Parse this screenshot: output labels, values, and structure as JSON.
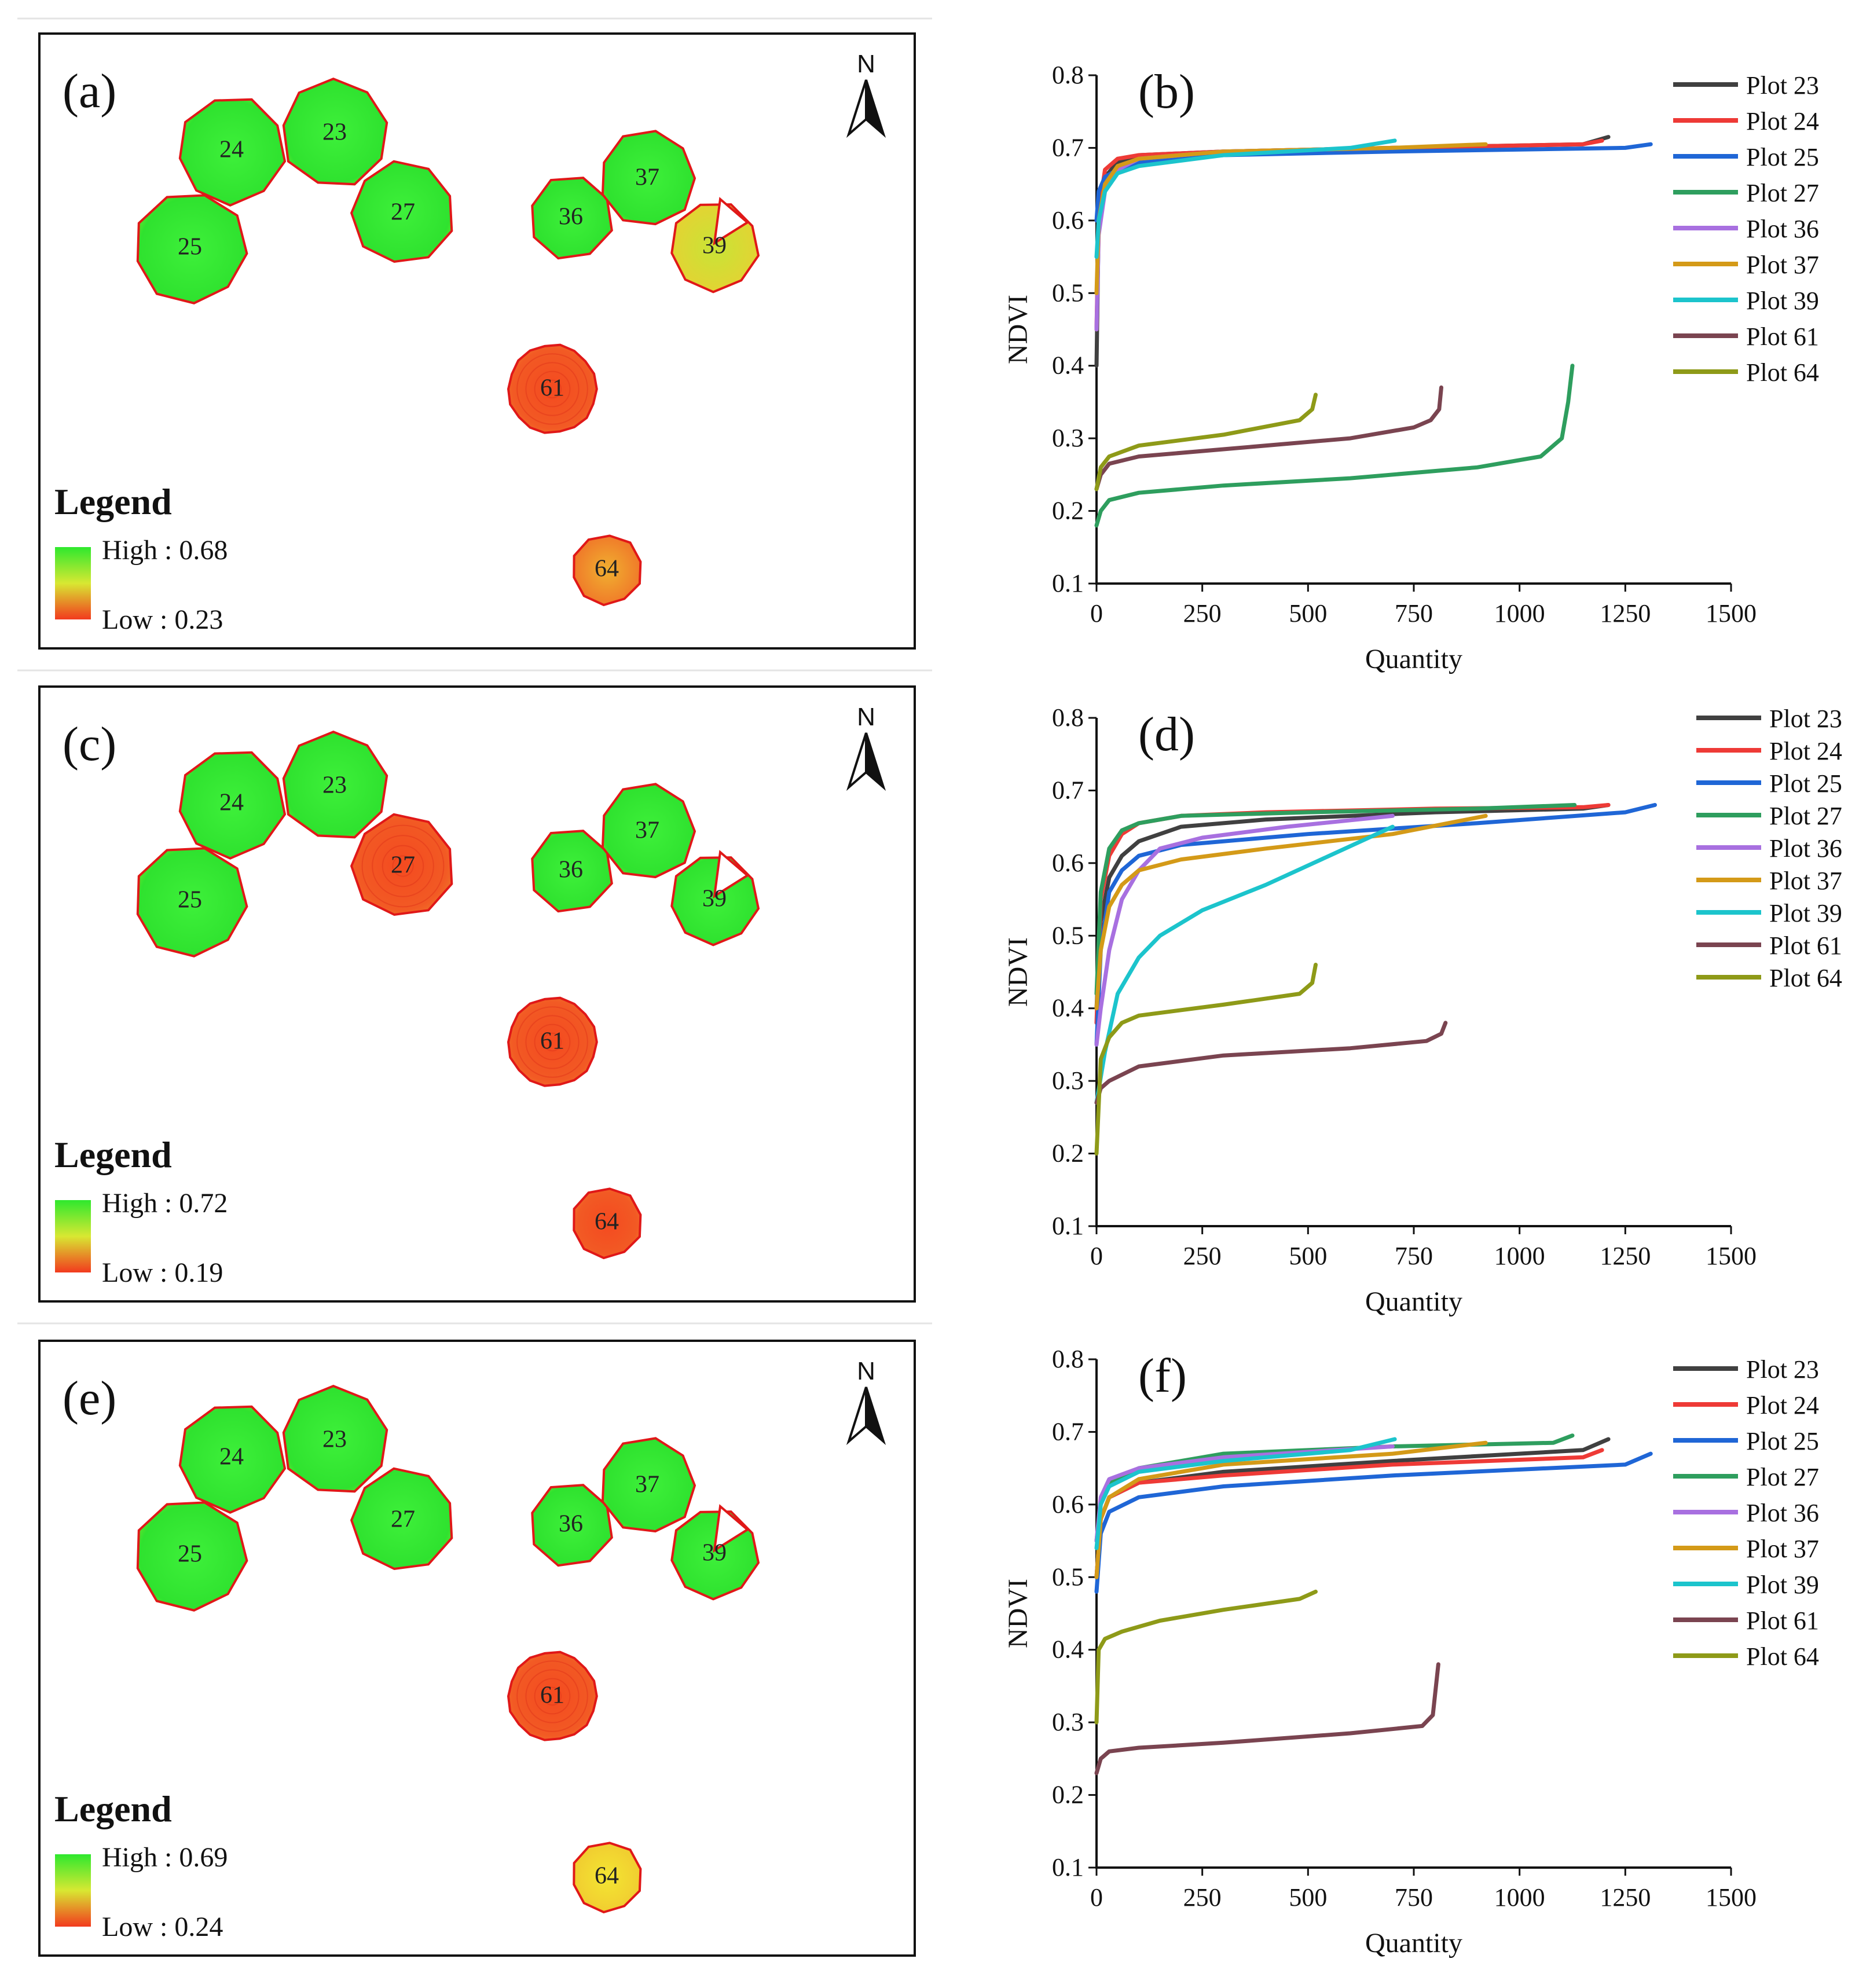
{
  "colors": {
    "high": "#2ee82e",
    "mid": "#d8e832",
    "low": "#f23a1e",
    "outline": "#e01818",
    "Plot 23": "#404040",
    "Plot 24": "#ee3a36",
    "Plot 25": "#1f66d6",
    "Plot 27": "#2e9e5e",
    "Plot 36": "#a870e0",
    "Plot 37": "#d49a18",
    "Plot 39": "#1cc4cc",
    "Plot 61": "#7a4450",
    "Plot 64": "#8e9a18"
  },
  "maps": [
    {
      "label": "(a)",
      "north_label": "N",
      "legend_title": "Legend",
      "legend_high": "High : 0.68",
      "legend_low": "Low : 0.23",
      "plots": [
        {
          "id": "24",
          "ndvi_level": "high"
        },
        {
          "id": "23",
          "ndvi_level": "high"
        },
        {
          "id": "25",
          "ndvi_level": "high"
        },
        {
          "id": "27",
          "ndvi_level": "high"
        },
        {
          "id": "36",
          "ndvi_level": "high"
        },
        {
          "id": "37",
          "ndvi_level": "high"
        },
        {
          "id": "39",
          "ndvi_level": "mixed"
        },
        {
          "id": "61",
          "ndvi_level": "low"
        },
        {
          "id": "64",
          "ndvi_level": "low-mid"
        }
      ]
    },
    {
      "label": "(c)",
      "north_label": "N",
      "legend_title": "Legend",
      "legend_high": "High : 0.72",
      "legend_low": "Low : 0.19",
      "plots": [
        {
          "id": "24",
          "ndvi_level": "high"
        },
        {
          "id": "23",
          "ndvi_level": "high"
        },
        {
          "id": "25",
          "ndvi_level": "high"
        },
        {
          "id": "27",
          "ndvi_level": "low"
        },
        {
          "id": "36",
          "ndvi_level": "high"
        },
        {
          "id": "37",
          "ndvi_level": "high"
        },
        {
          "id": "39",
          "ndvi_level": "high"
        },
        {
          "id": "61",
          "ndvi_level": "low"
        },
        {
          "id": "64",
          "ndvi_level": "low"
        }
      ]
    },
    {
      "label": "(e)",
      "north_label": "N",
      "legend_title": "Legend",
      "legend_high": "High : 0.69",
      "legend_low": "Low : 0.24",
      "plots": [
        {
          "id": "24",
          "ndvi_level": "high"
        },
        {
          "id": "23",
          "ndvi_level": "high"
        },
        {
          "id": "25",
          "ndvi_level": "high"
        },
        {
          "id": "27",
          "ndvi_level": "high"
        },
        {
          "id": "36",
          "ndvi_level": "high"
        },
        {
          "id": "37",
          "ndvi_level": "high"
        },
        {
          "id": "39",
          "ndvi_level": "high"
        },
        {
          "id": "61",
          "ndvi_level": "low"
        },
        {
          "id": "64",
          "ndvi_level": "mid"
        }
      ]
    }
  ],
  "chart_data": [
    {
      "type": "line",
      "label": "(b)",
      "xlabel": "Quantity",
      "ylabel": "NDVI",
      "xlim": [
        0,
        1500
      ],
      "ylim": [
        0.1,
        0.8
      ],
      "xticks": [
        0,
        250,
        500,
        750,
        1000,
        1250,
        1500
      ],
      "yticks": [
        0.1,
        0.2,
        0.3,
        0.4,
        0.5,
        0.6,
        0.7,
        0.8
      ],
      "legend_position": "right",
      "series": [
        {
          "name": "Plot 23",
          "x": [
            0,
            5,
            20,
            50,
            100,
            300,
            700,
            1150,
            1210
          ],
          "y": [
            0.4,
            0.6,
            0.66,
            0.68,
            0.69,
            0.695,
            0.7,
            0.705,
            0.715
          ]
        },
        {
          "name": "Plot 24",
          "x": [
            0,
            5,
            20,
            50,
            100,
            300,
            700,
            1150,
            1195
          ],
          "y": [
            0.45,
            0.61,
            0.67,
            0.685,
            0.69,
            0.695,
            0.7,
            0.705,
            0.71
          ]
        },
        {
          "name": "Plot 25",
          "x": [
            0,
            5,
            20,
            50,
            100,
            300,
            700,
            1250,
            1310
          ],
          "y": [
            0.6,
            0.64,
            0.66,
            0.67,
            0.68,
            0.69,
            0.695,
            0.7,
            0.705
          ]
        },
        {
          "name": "Plot 27",
          "x": [
            0,
            10,
            30,
            100,
            300,
            600,
            900,
            1050,
            1100,
            1115,
            1125
          ],
          "y": [
            0.18,
            0.2,
            0.215,
            0.225,
            0.235,
            0.245,
            0.26,
            0.275,
            0.3,
            0.35,
            0.4
          ]
        },
        {
          "name": "Plot 36",
          "x": [
            0,
            5,
            20,
            50,
            100,
            300,
            700
          ],
          "y": [
            0.45,
            0.58,
            0.64,
            0.67,
            0.685,
            0.695,
            0.7
          ]
        },
        {
          "name": "Plot 37",
          "x": [
            0,
            5,
            20,
            50,
            100,
            300,
            700,
            920
          ],
          "y": [
            0.5,
            0.6,
            0.65,
            0.675,
            0.685,
            0.695,
            0.7,
            0.705
          ]
        },
        {
          "name": "Plot 39",
          "x": [
            0,
            5,
            20,
            50,
            100,
            300,
            600,
            705
          ],
          "y": [
            0.55,
            0.6,
            0.64,
            0.665,
            0.675,
            0.69,
            0.7,
            0.71
          ]
        },
        {
          "name": "Plot 61",
          "x": [
            0,
            10,
            30,
            100,
            300,
            600,
            750,
            790,
            810,
            815
          ],
          "y": [
            0.23,
            0.25,
            0.265,
            0.275,
            0.285,
            0.3,
            0.315,
            0.325,
            0.34,
            0.37
          ]
        },
        {
          "name": "Plot 64",
          "x": [
            0,
            10,
            30,
            100,
            300,
            480,
            510,
            518
          ],
          "y": [
            0.23,
            0.26,
            0.275,
            0.29,
            0.305,
            0.325,
            0.34,
            0.36
          ]
        }
      ]
    },
    {
      "type": "line",
      "label": "(d)",
      "xlabel": "Quantity",
      "ylabel": "NDVI",
      "xlim": [
        0,
        1500
      ],
      "ylim": [
        0.1,
        0.8
      ],
      "xticks": [
        0,
        250,
        500,
        750,
        1000,
        1250,
        1500
      ],
      "yticks": [
        0.1,
        0.2,
        0.3,
        0.4,
        0.5,
        0.6,
        0.7,
        0.8
      ],
      "legend_position": "right",
      "series": [
        {
          "name": "Plot 23",
          "x": [
            0,
            10,
            30,
            60,
            100,
            200,
            400,
            800,
            1150,
            1210
          ],
          "y": [
            0.4,
            0.52,
            0.58,
            0.61,
            0.63,
            0.65,
            0.66,
            0.67,
            0.675,
            0.68
          ]
        },
        {
          "name": "Plot 24",
          "x": [
            0,
            10,
            30,
            60,
            100,
            200,
            400,
            800,
            1150,
            1210
          ],
          "y": [
            0.38,
            0.55,
            0.61,
            0.64,
            0.655,
            0.665,
            0.67,
            0.675,
            0.677,
            0.68
          ]
        },
        {
          "name": "Plot 25",
          "x": [
            0,
            10,
            30,
            60,
            100,
            200,
            500,
            900,
            1250,
            1320
          ],
          "y": [
            0.35,
            0.48,
            0.56,
            0.59,
            0.61,
            0.625,
            0.64,
            0.655,
            0.67,
            0.68
          ]
        },
        {
          "name": "Plot 27",
          "x": [
            0,
            10,
            30,
            60,
            100,
            200,
            500,
            900,
            1130
          ],
          "y": [
            0.42,
            0.56,
            0.62,
            0.645,
            0.655,
            0.665,
            0.67,
            0.675,
            0.68
          ]
        },
        {
          "name": "Plot 36",
          "x": [
            0,
            10,
            30,
            60,
            100,
            150,
            250,
            450,
            700
          ],
          "y": [
            0.35,
            0.4,
            0.48,
            0.55,
            0.59,
            0.62,
            0.635,
            0.65,
            0.665
          ]
        },
        {
          "name": "Plot 37",
          "x": [
            0,
            10,
            30,
            60,
            100,
            200,
            400,
            700,
            920
          ],
          "y": [
            0.4,
            0.48,
            0.54,
            0.57,
            0.59,
            0.605,
            0.62,
            0.64,
            0.665
          ]
        },
        {
          "name": "Plot 39",
          "x": [
            0,
            20,
            50,
            100,
            150,
            250,
            400,
            550,
            700
          ],
          "y": [
            0.27,
            0.34,
            0.42,
            0.47,
            0.5,
            0.535,
            0.57,
            0.61,
            0.65
          ]
        },
        {
          "name": "Plot 61",
          "x": [
            0,
            10,
            30,
            100,
            300,
            600,
            780,
            815,
            825
          ],
          "y": [
            0.27,
            0.29,
            0.3,
            0.32,
            0.335,
            0.345,
            0.355,
            0.365,
            0.38
          ]
        },
        {
          "name": "Plot 64",
          "x": [
            0,
            10,
            30,
            60,
            100,
            300,
            480,
            510,
            518
          ],
          "y": [
            0.2,
            0.33,
            0.36,
            0.38,
            0.39,
            0.405,
            0.42,
            0.435,
            0.46
          ]
        }
      ]
    },
    {
      "type": "line",
      "label": "(f)",
      "xlabel": "Quantity",
      "ylabel": "NDVI",
      "xlim": [
        0,
        1500
      ],
      "ylim": [
        0.1,
        0.8
      ],
      "xticks": [
        0,
        250,
        500,
        750,
        1000,
        1250,
        1500
      ],
      "yticks": [
        0.1,
        0.2,
        0.3,
        0.4,
        0.5,
        0.6,
        0.7,
        0.8
      ],
      "legend_position": "right",
      "series": [
        {
          "name": "Plot 23",
          "x": [
            0,
            10,
            30,
            100,
            300,
            700,
            1150,
            1210
          ],
          "y": [
            0.5,
            0.58,
            0.61,
            0.63,
            0.645,
            0.66,
            0.675,
            0.69
          ]
        },
        {
          "name": "Plot 24",
          "x": [
            0,
            10,
            30,
            100,
            300,
            700,
            1150,
            1195
          ],
          "y": [
            0.5,
            0.58,
            0.61,
            0.63,
            0.64,
            0.655,
            0.665,
            0.675
          ]
        },
        {
          "name": "Plot 25",
          "x": [
            0,
            10,
            30,
            100,
            300,
            700,
            1250,
            1310
          ],
          "y": [
            0.48,
            0.56,
            0.59,
            0.61,
            0.625,
            0.64,
            0.655,
            0.67
          ]
        },
        {
          "name": "Plot 27",
          "x": [
            0,
            10,
            30,
            100,
            300,
            700,
            1080,
            1125
          ],
          "y": [
            0.55,
            0.6,
            0.63,
            0.65,
            0.67,
            0.68,
            0.685,
            0.695
          ]
        },
        {
          "name": "Plot 36",
          "x": [
            0,
            10,
            30,
            100,
            300,
            700
          ],
          "y": [
            0.55,
            0.61,
            0.635,
            0.65,
            0.665,
            0.68
          ]
        },
        {
          "name": "Plot 37",
          "x": [
            0,
            10,
            30,
            100,
            300,
            700,
            920
          ],
          "y": [
            0.5,
            0.58,
            0.61,
            0.635,
            0.655,
            0.67,
            0.685
          ]
        },
        {
          "name": "Plot 39",
          "x": [
            0,
            10,
            30,
            100,
            300,
            600,
            705
          ],
          "y": [
            0.54,
            0.6,
            0.625,
            0.645,
            0.66,
            0.675,
            0.69
          ]
        },
        {
          "name": "Plot 61",
          "x": [
            0,
            10,
            30,
            100,
            300,
            600,
            770,
            795,
            808
          ],
          "y": [
            0.23,
            0.25,
            0.26,
            0.265,
            0.272,
            0.285,
            0.295,
            0.31,
            0.38
          ]
        },
        {
          "name": "Plot 64",
          "x": [
            0,
            5,
            20,
            60,
            150,
            300,
            480,
            518
          ],
          "y": [
            0.3,
            0.4,
            0.415,
            0.425,
            0.44,
            0.455,
            0.47,
            0.48
          ]
        }
      ]
    }
  ]
}
